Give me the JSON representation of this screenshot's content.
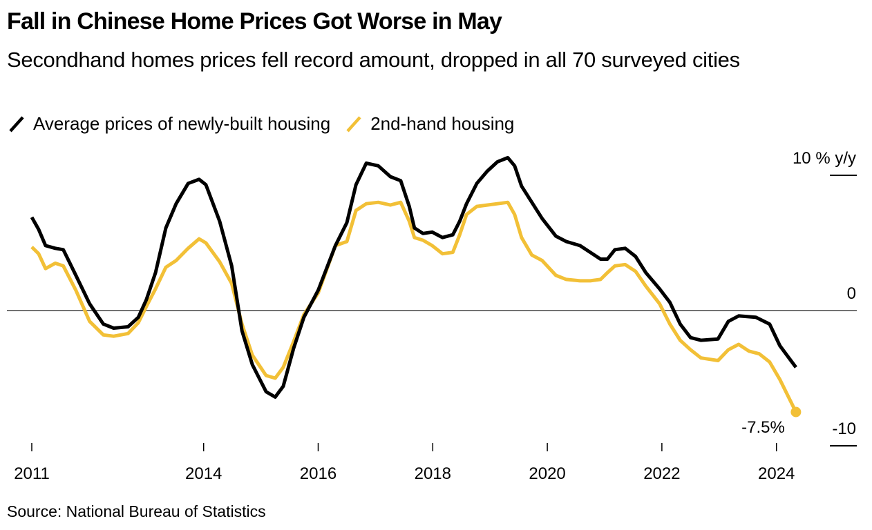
{
  "chart_data": {
    "type": "line",
    "title": "Fall in Chinese Home Prices Got Worse in May",
    "subtitle": "Secondhand homes prices fell record amount, dropped in all 70 surveyed cities",
    "xlabel": "",
    "ylabel": "% y/y",
    "ylim": [
      -10,
      10
    ],
    "xlim": [
      2011.0,
      2025.3
    ],
    "y_ticks": [
      {
        "value": 10,
        "label": "10 % y/y"
      },
      {
        "value": 0,
        "label": "0"
      },
      {
        "value": -10,
        "label": "-10"
      }
    ],
    "x_ticks": [
      {
        "value": 2011,
        "label": "2011"
      },
      {
        "value": 2014,
        "label": "2014"
      },
      {
        "value": 2016,
        "label": "2016"
      },
      {
        "value": 2018,
        "label": "2018"
      },
      {
        "value": 2020,
        "label": "2020"
      },
      {
        "value": 2022,
        "label": "2022"
      },
      {
        "value": 2024,
        "label": "2024"
      }
    ],
    "grid": false,
    "zero_line": true,
    "legend_position": "top-left",
    "series": [
      {
        "name": "Average prices of newly-built housing",
        "color": "#000000",
        "x": [
          2011.0,
          2011.12,
          2011.24,
          2011.41,
          2011.55,
          2011.77,
          2012.01,
          2012.25,
          2012.43,
          2012.68,
          2012.86,
          2013.0,
          2013.16,
          2013.34,
          2013.52,
          2013.73,
          2013.92,
          2014.04,
          2014.28,
          2014.49,
          2014.67,
          2014.85,
          2015.09,
          2015.25,
          2015.39,
          2015.57,
          2015.75,
          2016.0,
          2016.3,
          2016.5,
          2016.66,
          2016.84,
          2017.05,
          2017.26,
          2017.44,
          2017.59,
          2017.68,
          2017.83,
          2017.99,
          2018.17,
          2018.35,
          2018.47,
          2018.59,
          2018.77,
          2018.95,
          2019.13,
          2019.31,
          2019.43,
          2019.55,
          2019.73,
          2019.91,
          2020.15,
          2020.33,
          2020.57,
          2020.75,
          2020.93,
          2021.05,
          2021.18,
          2021.36,
          2021.54,
          2021.72,
          2021.96,
          2022.14,
          2022.32,
          2022.5,
          2022.68,
          2022.98,
          2023.16,
          2023.34,
          2023.64,
          2023.88,
          2024.06,
          2024.34
        ],
        "values": [
          6.9,
          6.0,
          4.8,
          4.6,
          4.5,
          2.6,
          0.5,
          -1.0,
          -1.3,
          -1.2,
          -0.5,
          0.8,
          2.8,
          6.1,
          7.9,
          9.4,
          9.7,
          9.3,
          6.6,
          3.3,
          -1.5,
          -4.0,
          -6.0,
          -6.4,
          -5.6,
          -2.8,
          -0.5,
          1.5,
          4.8,
          6.5,
          9.3,
          10.9,
          10.7,
          9.9,
          9.6,
          7.7,
          6.1,
          5.7,
          5.8,
          5.4,
          5.6,
          6.6,
          7.9,
          9.4,
          10.3,
          11.0,
          11.3,
          10.7,
          9.2,
          8.0,
          6.8,
          5.5,
          5.1,
          4.8,
          4.3,
          3.8,
          3.8,
          4.5,
          4.6,
          4.0,
          2.8,
          1.6,
          0.6,
          -1.0,
          -2.0,
          -2.2,
          -2.1,
          -0.8,
          -0.4,
          -0.5,
          -1.0,
          -2.6,
          -4.2
        ]
      },
      {
        "name": "2nd-hand housing",
        "color": "#f2c037",
        "x": [
          2011.0,
          2011.12,
          2011.24,
          2011.41,
          2011.55,
          2011.77,
          2012.01,
          2012.25,
          2012.43,
          2012.68,
          2012.86,
          2013.0,
          2013.16,
          2013.34,
          2013.52,
          2013.73,
          2013.92,
          2014.04,
          2014.28,
          2014.49,
          2014.67,
          2014.85,
          2015.09,
          2015.25,
          2015.39,
          2015.57,
          2015.75,
          2016.0,
          2016.3,
          2016.5,
          2016.66,
          2016.84,
          2017.05,
          2017.26,
          2017.44,
          2017.59,
          2017.68,
          2017.83,
          2017.99,
          2018.17,
          2018.35,
          2018.47,
          2018.59,
          2018.77,
          2018.95,
          2019.13,
          2019.31,
          2019.43,
          2019.55,
          2019.73,
          2019.91,
          2020.15,
          2020.33,
          2020.57,
          2020.75,
          2020.93,
          2021.05,
          2021.18,
          2021.36,
          2021.54,
          2021.72,
          2021.96,
          2022.14,
          2022.32,
          2022.5,
          2022.68,
          2022.98,
          2023.16,
          2023.34,
          2023.52,
          2023.7,
          2023.88,
          2024.06,
          2024.34
        ],
        "values": [
          4.7,
          4.2,
          3.1,
          3.5,
          3.3,
          1.5,
          -0.8,
          -1.8,
          -1.9,
          -1.7,
          -0.9,
          0.3,
          1.6,
          3.2,
          3.7,
          4.6,
          5.3,
          5.0,
          3.6,
          2.0,
          -1.0,
          -3.3,
          -4.8,
          -5.0,
          -4.2,
          -2.3,
          -0.3,
          1.3,
          4.8,
          5.1,
          7.4,
          7.9,
          8.0,
          7.8,
          8.0,
          6.6,
          5.4,
          5.2,
          4.8,
          4.2,
          4.3,
          5.6,
          7.1,
          7.7,
          7.8,
          7.9,
          8.0,
          7.1,
          5.4,
          4.1,
          3.7,
          2.6,
          2.3,
          2.2,
          2.2,
          2.3,
          2.8,
          3.3,
          3.4,
          2.9,
          1.8,
          0.5,
          -1.0,
          -2.2,
          -2.9,
          -3.5,
          -3.7,
          -2.9,
          -2.5,
          -3.0,
          -3.2,
          -3.8,
          -5.1,
          -7.5
        ]
      }
    ],
    "annotations": [
      {
        "text": "-7.5%",
        "series": "2nd-hand housing",
        "x": 2024.34,
        "y": -7.5,
        "marker": "dot"
      }
    ]
  },
  "source": "Source: National Bureau of Statistics"
}
